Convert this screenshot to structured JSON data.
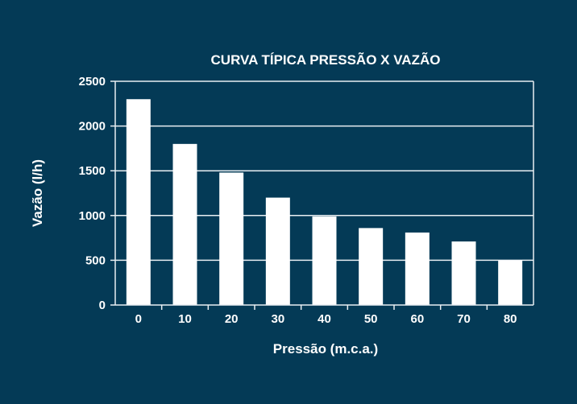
{
  "chart_data": {
    "type": "bar",
    "title": "CURVA TÍPICA PRESSÃO X VAZÃO",
    "xlabel": "Pressão (m.c.a.)",
    "ylabel": "Vazão (l/h)",
    "categories": [
      "0",
      "10",
      "20",
      "30",
      "40",
      "50",
      "60",
      "70",
      "80"
    ],
    "values": [
      2300,
      1800,
      1480,
      1200,
      990,
      860,
      810,
      710,
      500
    ],
    "yticks": [
      "0",
      "500",
      "1000",
      "1500",
      "2000",
      "2500"
    ],
    "ylim": [
      0,
      2500
    ],
    "grid": true,
    "colors": {
      "background": "#043a56",
      "bars": "#ffffff",
      "grid": "#e8eef2"
    }
  }
}
